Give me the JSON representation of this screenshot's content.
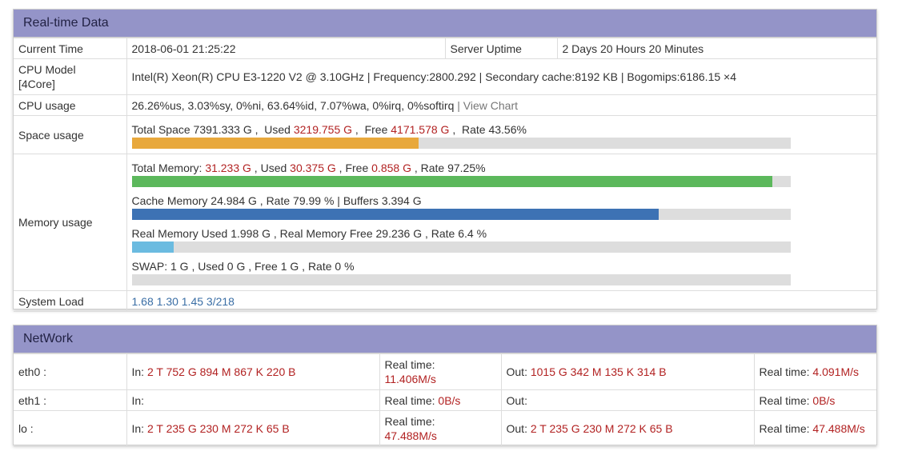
{
  "realtime": {
    "title": "Real-time Data",
    "current_time_label": "Current Time",
    "current_time": "2018-06-01 21:25:22",
    "uptime_label": "Server Uptime",
    "uptime": "2 Days 20 Hours 20 Minutes",
    "cpu_model_label_1": "CPU Model",
    "cpu_model_label_2": "[4Core]",
    "cpu_model": "Intel(R) Xeon(R) CPU E3-1220 V2 @ 3.10GHz | Frequency:2800.292 | Secondary cache:8192 KB | Bogomips:6186.15 ×4",
    "cpu_usage_label": "CPU usage",
    "cpu_usage": "26.26%us, 3.03%sy, 0%ni, 63.64%id, 7.07%wa, 0%irq, 0%softirq",
    "cpu_usage_sep": " | ",
    "view_chart": "View Chart",
    "space_label": "Space usage",
    "space": {
      "total_prefix": "Total Space 7391.333 G ,  Used ",
      "used": "3219.755 G",
      "free_prefix": " ,  Free ",
      "free": "4171.578 G",
      "rate_text": " ,  Rate 43.56%",
      "rate": 43.56,
      "color": "#e8a83c"
    },
    "memory_label": "Memory usage",
    "memory": {
      "total_prefix": "Total Memory: ",
      "total": "31.233 G",
      "used_prefix": " , Used ",
      "used": "30.375 G",
      "free_prefix": " , Free ",
      "free": "0.858 G",
      "rate_text": " , Rate 97.25%",
      "rate": 97.25,
      "color": "#5cb85c"
    },
    "cache": {
      "text": "Cache Memory 24.984 G , Rate 79.99 % | Buffers 3.394 G",
      "rate": 79.99,
      "color": "#3d72b4"
    },
    "real_memory": {
      "text": "Real Memory Used 1.998 G , Real Memory Free 29.236 G , Rate 6.4 %",
      "rate": 6.4,
      "color": "#6bbbe0"
    },
    "swap": {
      "text": "SWAP: 1 G , Used 0 G , Free 1 G , Rate 0 %",
      "rate": 0,
      "color": "#5cb85c"
    },
    "load_label": "System Load",
    "load": "1.68 1.30 1.45 3/218"
  },
  "network": {
    "title": "NetWork",
    "in_label": "In: ",
    "out_label": "Out: ",
    "realtime_label": "Real time: ",
    "interfaces": [
      {
        "name": "eth0 :",
        "in": "2 T 752 G 894 M 867 K 220 B",
        "in_rt": "11.406M/s",
        "out": "1015 G 342 M 135 K 314 B",
        "out_rt": "4.091M/s"
      },
      {
        "name": "eth1 :",
        "in": "",
        "in_rt": "0B/s",
        "out": "",
        "out_rt": "0B/s"
      },
      {
        "name": "lo :",
        "in": "2 T 235 G 230 M 272 K 65 B",
        "in_rt": "47.488M/s",
        "out": "2 T 235 G 230 M 272 K 65 B",
        "out_rt": "47.488M/s"
      }
    ]
  }
}
